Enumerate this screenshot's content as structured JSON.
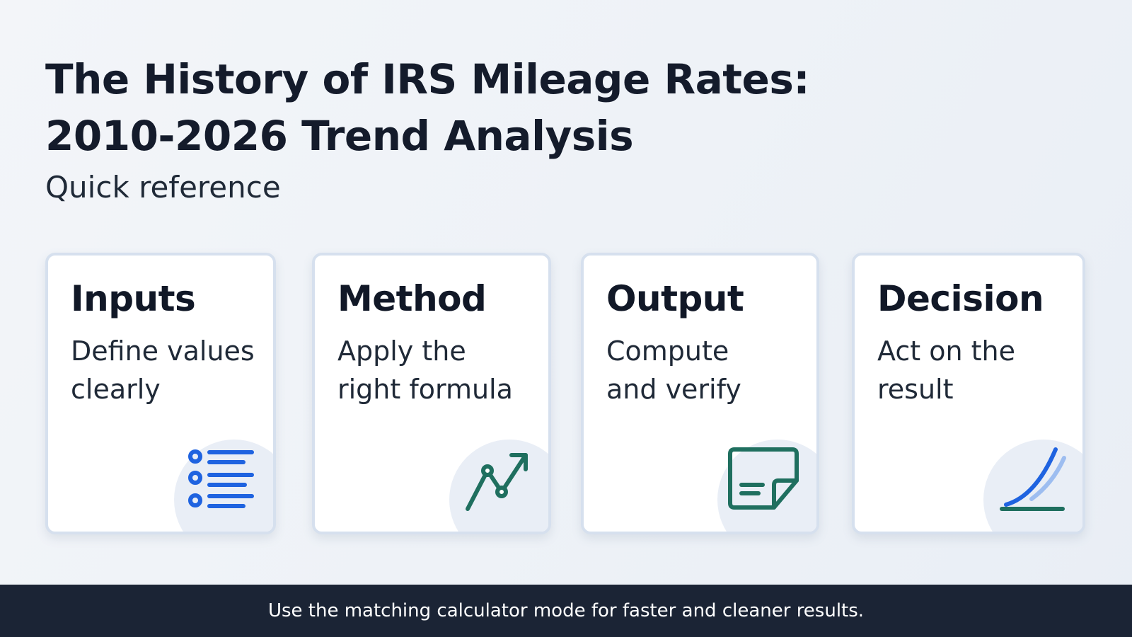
{
  "header": {
    "title_lines": [
      "The History of IRS Mileage Rates:",
      "2010-2026 Trend Analysis"
    ],
    "subtitle": "Quick reference"
  },
  "cards": [
    {
      "title": "Inputs",
      "text_lines": [
        "Define values",
        "clearly"
      ]
    },
    {
      "title": "Method",
      "text_lines": [
        "Apply the",
        "right formula"
      ]
    },
    {
      "title": "Output",
      "text_lines": [
        "Compute",
        "and verify"
      ]
    },
    {
      "title": "Decision",
      "text_lines": [
        "Act on the",
        "result"
      ]
    }
  ],
  "footer": {
    "text": "Use the matching calculator mode for faster and cleaner results."
  }
}
